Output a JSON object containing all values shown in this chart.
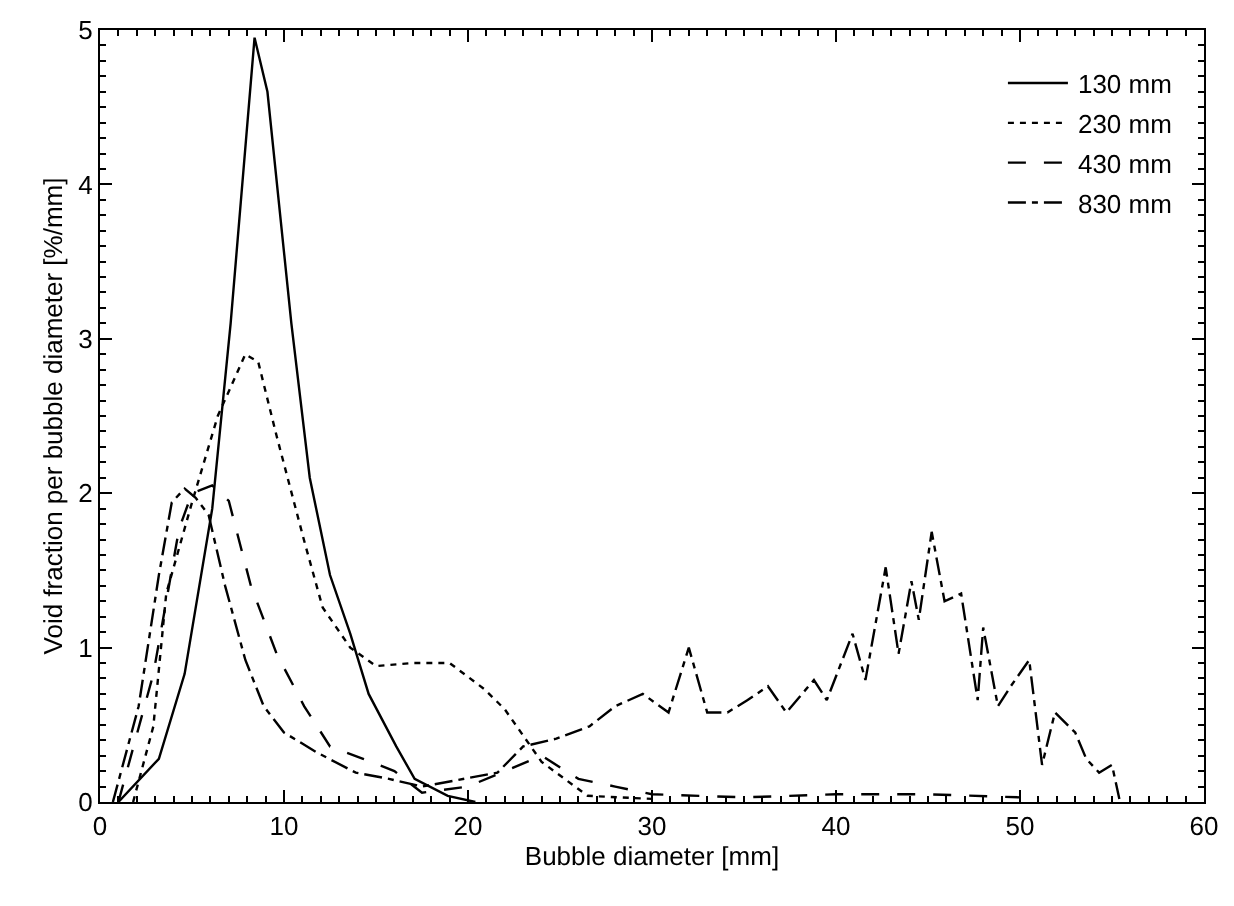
{
  "chart_data": {
    "type": "line",
    "xlabel": "Bubble diameter [mm]",
    "ylabel": "Void fraction per bubble diameter [%/mm]",
    "xlim": [
      0,
      60
    ],
    "ylim": [
      0,
      5
    ],
    "xticks": [
      0,
      10,
      20,
      30,
      40,
      50,
      60
    ],
    "yticks": [
      0,
      1,
      2,
      3,
      4,
      5
    ],
    "legend": "top right",
    "marker": "none",
    "series": [
      {
        "name": "130 mm",
        "color": "#000000",
        "line_style": "solid",
        "x": [
          1,
          3.2,
          4.6,
          6.1,
          7.1,
          8.4,
          9.1,
          10.4,
          11.4,
          12.5,
          13.6,
          14.6,
          16.1,
          17.1,
          18.9,
          20.4
        ],
        "values": [
          0,
          0.28,
          0.83,
          1.9,
          3.1,
          4.95,
          4.6,
          3.1,
          2.1,
          1.47,
          1.09,
          0.7,
          0.36,
          0.15,
          0.04,
          0
        ]
      },
      {
        "name": "230 mm",
        "color": "#000000",
        "line_style": "dotted",
        "x": [
          1.8,
          2.9,
          3.6,
          5,
          6.4,
          7.9,
          8.6,
          9.6,
          11.1,
          12.1,
          13.6,
          15,
          17,
          19,
          20.9,
          22,
          24,
          26.5,
          30
        ],
        "values": [
          0,
          0.49,
          1.35,
          1.94,
          2.5,
          2.9,
          2.85,
          2.37,
          1.69,
          1.26,
          1.0,
          0.88,
          0.9,
          0.9,
          0.73,
          0.6,
          0.26,
          0.04,
          0.02
        ]
      },
      {
        "name": "430 mm",
        "color": "#000000",
        "line_style": "dashed",
        "x": [
          1,
          2.9,
          4.3,
          5,
          6.1,
          7,
          8.2,
          9.6,
          11.1,
          12.5,
          14.3,
          16,
          17.5,
          20,
          22,
          24,
          26,
          28,
          30,
          35,
          40,
          45,
          50
        ],
        "values": [
          0,
          0.83,
          1.77,
          2.0,
          2.05,
          1.95,
          1.4,
          0.96,
          0.62,
          0.36,
          0.28,
          0.2,
          0.06,
          0.1,
          0.2,
          0.3,
          0.15,
          0.1,
          0.05,
          0.03,
          0.05,
          0.05,
          0.03
        ]
      },
      {
        "name": "830 mm",
        "color": "#000000",
        "line_style": "dashdot",
        "x": [
          0.7,
          2.1,
          3.2,
          3.9,
          4.6,
          5.2,
          5.9,
          6.8,
          7.9,
          8.9,
          10,
          11.8,
          13.9,
          15.7,
          17.5,
          21.6,
          23,
          24.8,
          26.6,
          28,
          29.5,
          30.9,
          32,
          33,
          34.1,
          35.2,
          36.3,
          37.3,
          38.8,
          39.5,
          40.9,
          41.6,
          42.7,
          43.4,
          44.1,
          44.5,
          45.2,
          45.9,
          46.8,
          47.7,
          48,
          48.8,
          49.5,
          50.5,
          51.2,
          51.9,
          53,
          53.6,
          54.3,
          55,
          55.4
        ],
        "values": [
          0,
          0.62,
          1.47,
          1.94,
          2.03,
          1.97,
          1.86,
          1.4,
          0.92,
          0.62,
          0.45,
          0.32,
          0.19,
          0.15,
          0.1,
          0.19,
          0.36,
          0.41,
          0.49,
          0.62,
          0.7,
          0.58,
          1.0,
          0.58,
          0.58,
          0.66,
          0.75,
          0.58,
          0.79,
          0.66,
          1.09,
          0.79,
          1.52,
          0.96,
          1.43,
          1.18,
          1.75,
          1.3,
          1.35,
          0.66,
          1.13,
          0.62,
          0.75,
          0.92,
          0.24,
          0.58,
          0.45,
          0.28,
          0.19,
          0.24,
          0.02
        ]
      }
    ]
  }
}
